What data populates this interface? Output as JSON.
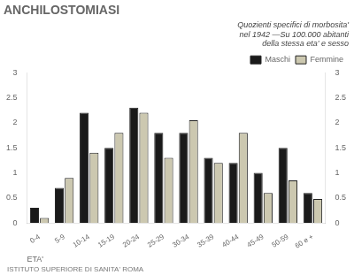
{
  "chart_data": {
    "type": "bar",
    "title": "ANCHILOSTOMIASI",
    "subtitle": "Quozienti specifici di morbosita'\nnel 1942 —Su 100.000 abitanti\ndella stessa eta' e sesso",
    "x_label": "ETA'",
    "annotations": [
      "ISTITUTO SUPERIORE DI SANITA' ROMA"
    ],
    "categories": [
      "0-4",
      "5-9",
      "10-14",
      "15-19",
      "20-24",
      "25-29",
      "30-34",
      "35-39",
      "40-44",
      "45-49",
      "50-59",
      "60 e +"
    ],
    "series": [
      {
        "name": "Maschi",
        "color": "#1a1a1a",
        "values": [
          0.3,
          0.7,
          2.2,
          1.5,
          2.3,
          1.8,
          1.8,
          1.3,
          1.2,
          1.0,
          1.5,
          0.6
        ]
      },
      {
        "name": "Femmine",
        "color": "#ccc8b0",
        "values": [
          0.1,
          0.9,
          1.4,
          1.8,
          2.2,
          1.3,
          2.05,
          1.2,
          1.8,
          0.6,
          0.85,
          0.48
        ]
      }
    ],
    "ylim": [
      0,
      3.0
    ],
    "yticks": [
      0,
      0.5,
      1,
      1.5,
      2,
      2.5,
      3
    ],
    "y2lim": [
      0,
      3.0
    ],
    "y2ticks": [
      0,
      0.5,
      1,
      1.5,
      2,
      2.5,
      3
    ],
    "grid": false,
    "legend": "upper right"
  }
}
